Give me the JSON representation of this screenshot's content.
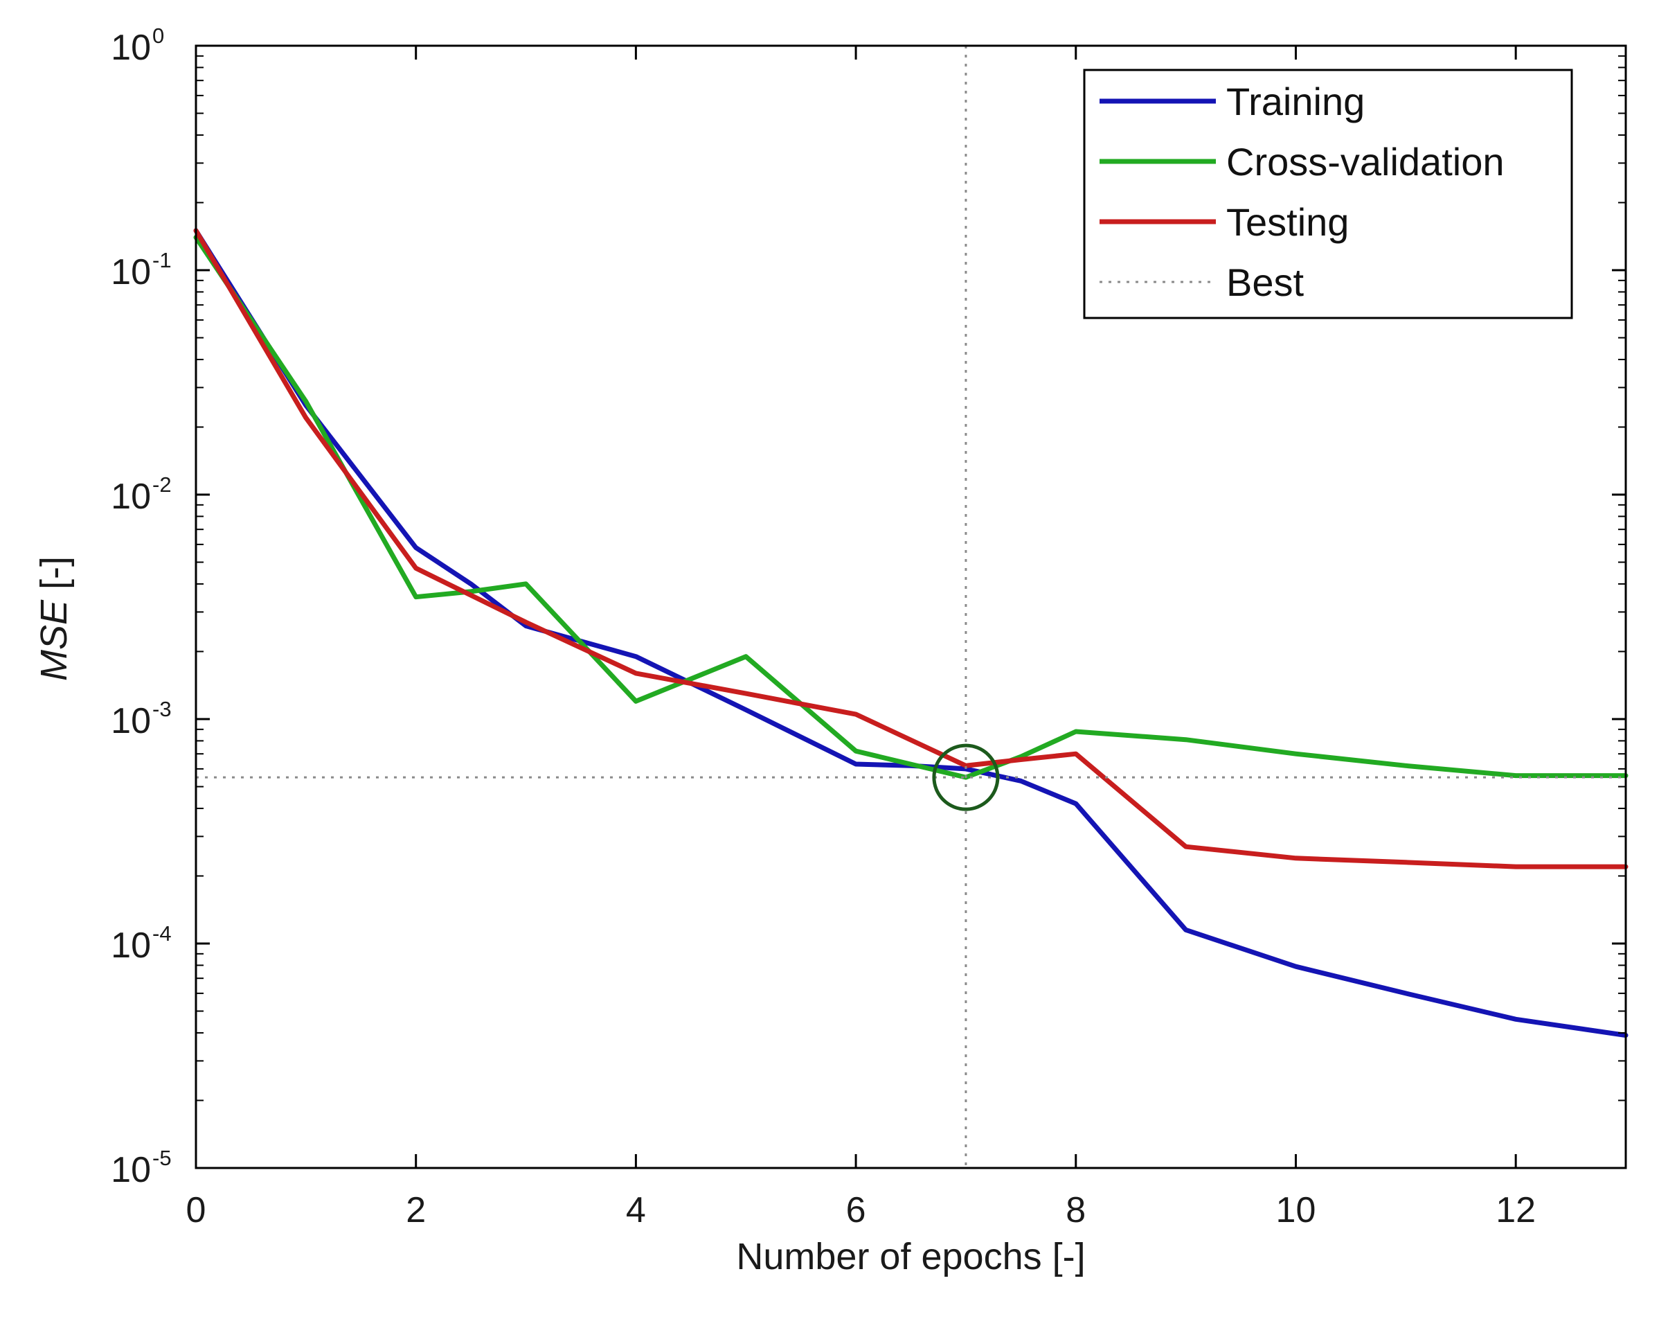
{
  "chart_data": {
    "type": "line",
    "title": "",
    "xlabel": "Number of epochs [-]",
    "ylabel": {
      "italic": "MSE",
      "suffix": " [-]"
    },
    "xlim": [
      0,
      13
    ],
    "ylim": [
      1e-05,
      1
    ],
    "yscale": "log",
    "grid": false,
    "legend_position": "top-right",
    "x_ticks": [
      {
        "value": 0,
        "label": "0"
      },
      {
        "value": 2,
        "label": "2"
      },
      {
        "value": 4,
        "label": "4"
      },
      {
        "value": 6,
        "label": "6"
      },
      {
        "value": 8,
        "label": "8"
      },
      {
        "value": 10,
        "label": "10"
      },
      {
        "value": 12,
        "label": "12"
      }
    ],
    "y_ticks": [
      {
        "value": 1,
        "base": "10",
        "exp": "0"
      },
      {
        "value": 0.1,
        "base": "10",
        "exp": "-1"
      },
      {
        "value": 0.01,
        "base": "10",
        "exp": "-2"
      },
      {
        "value": 0.001,
        "base": "10",
        "exp": "-3"
      },
      {
        "value": 0.0001,
        "base": "10",
        "exp": "-4"
      },
      {
        "value": 1e-05,
        "base": "10",
        "exp": "-5"
      }
    ],
    "series": [
      {
        "name": "Training",
        "color": "#1414b4",
        "x": [
          0,
          1,
          2,
          2.5,
          3,
          4,
          5,
          6,
          6.5,
          7,
          7.5,
          8,
          9,
          10,
          11,
          12,
          13
        ],
        "y": [
          0.15,
          0.025,
          0.0058,
          0.004,
          0.0026,
          0.0019,
          0.0011,
          0.00063,
          0.00062,
          0.0006,
          0.00053,
          0.00042,
          0.000115,
          7.9e-05,
          6e-05,
          4.6e-05,
          3.9e-05
        ]
      },
      {
        "name": "Cross-validation",
        "color": "#22aa22",
        "x": [
          0,
          1,
          2,
          2.5,
          3,
          4,
          5,
          6,
          7,
          7.5,
          8,
          9,
          10,
          11,
          12,
          13
        ],
        "y": [
          0.14,
          0.026,
          0.0035,
          0.0037,
          0.004,
          0.0012,
          0.0019,
          0.00072,
          0.00055,
          0.00068,
          0.00088,
          0.00081,
          0.0007,
          0.00062,
          0.00056,
          0.00056
        ]
      },
      {
        "name": "Testing",
        "color": "#c81e1e",
        "x": [
          0,
          1,
          2,
          3,
          4,
          5,
          6,
          7,
          7.5,
          8,
          9,
          10,
          11,
          12,
          13
        ],
        "y": [
          0.15,
          0.022,
          0.0047,
          0.0027,
          0.0016,
          0.0013,
          0.00105,
          0.00062,
          0.00066,
          0.0007,
          0.00027,
          0.00024,
          0.00023,
          0.00022,
          0.00022
        ]
      }
    ],
    "best": {
      "name": "Best",
      "x": 7,
      "y": 0.00055,
      "line_color": "#8a8a8a",
      "marker_color": "#1c5a1c"
    },
    "axis_color": "#000000"
  }
}
